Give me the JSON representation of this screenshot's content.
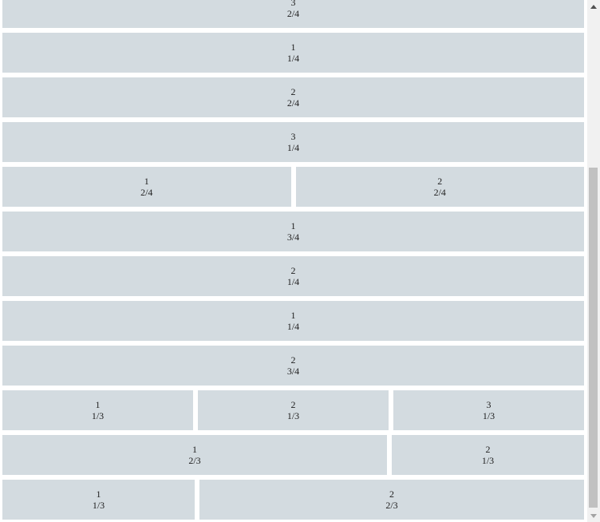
{
  "rows": [
    {
      "cells": [
        {
          "index": "3",
          "fraction": "2/4",
          "span": 4
        }
      ]
    },
    {
      "cells": [
        {
          "index": "1",
          "fraction": "1/4",
          "span": 4
        }
      ]
    },
    {
      "cells": [
        {
          "index": "2",
          "fraction": "2/4",
          "span": 4
        }
      ]
    },
    {
      "cells": [
        {
          "index": "3",
          "fraction": "1/4",
          "span": 4
        }
      ]
    },
    {
      "cells": [
        {
          "index": "1",
          "fraction": "2/4",
          "span": 2
        },
        {
          "index": "2",
          "fraction": "2/4",
          "span": 2
        }
      ]
    },
    {
      "cells": [
        {
          "index": "1",
          "fraction": "3/4",
          "span": 4
        }
      ]
    },
    {
      "cells": [
        {
          "index": "2",
          "fraction": "1/4",
          "span": 4
        }
      ]
    },
    {
      "cells": [
        {
          "index": "1",
          "fraction": "1/4",
          "span": 4
        }
      ]
    },
    {
      "cells": [
        {
          "index": "2",
          "fraction": "3/4",
          "span": 4
        }
      ]
    },
    {
      "cells": [
        {
          "index": "1",
          "fraction": "1/3",
          "span": 1
        },
        {
          "index": "2",
          "fraction": "1/3",
          "span": 1
        },
        {
          "index": "3",
          "fraction": "1/3",
          "span": 1
        }
      ]
    },
    {
      "cells": [
        {
          "index": "1",
          "fraction": "2/3",
          "span": 2
        },
        {
          "index": "2",
          "fraction": "1/3",
          "span": 1
        }
      ]
    },
    {
      "cells": [
        {
          "index": "1",
          "fraction": "1/3",
          "span": 1
        },
        {
          "index": "2",
          "fraction": "2/3",
          "span": 2
        }
      ]
    }
  ],
  "colors": {
    "cell_background": "#d3dbe0",
    "text": "#222222",
    "scrollbar_track": "#f1f1f1",
    "scrollbar_thumb": "#c1c1c1"
  },
  "scroll": {
    "position_fraction": 0.33,
    "up_icon": "triangle-up-icon",
    "down_icon": "triangle-down-icon"
  }
}
